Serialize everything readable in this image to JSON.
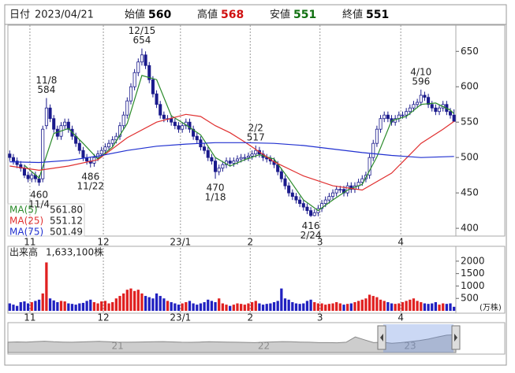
{
  "header": {
    "date_label": "日付",
    "date": "2023/04/21",
    "items": [
      {
        "label": "始値",
        "value": 560,
        "color": "#000000"
      },
      {
        "label": "高値",
        "value": 568,
        "color": "#d01010"
      },
      {
        "label": "安値",
        "value": 551,
        "color": "#107010"
      },
      {
        "label": "終値",
        "value": 551,
        "color": "#000000"
      }
    ]
  },
  "chart_data": [
    {
      "type": "candlestick",
      "categories": [
        null,
        null,
        null,
        null,
        null,
        null,
        "11",
        null,
        null,
        null,
        null,
        null,
        null,
        null,
        null,
        null,
        null,
        null,
        null,
        null,
        null,
        null,
        null,
        null,
        null,
        null,
        "12",
        null,
        null,
        null,
        null,
        null,
        null,
        null,
        null,
        null,
        null,
        null,
        null,
        null,
        null,
        null,
        null,
        null,
        null,
        null,
        null,
        "23/1",
        null,
        null,
        null,
        null,
        null,
        null,
        null,
        null,
        null,
        null,
        null,
        null,
        null,
        null,
        null,
        null,
        null,
        null,
        "2",
        null,
        null,
        null,
        null,
        null,
        null,
        null,
        null,
        null,
        null,
        null,
        null,
        null,
        null,
        null,
        null,
        null,
        null,
        "3",
        null,
        null,
        null,
        null,
        null,
        null,
        null,
        null,
        null,
        null,
        null,
        null,
        null,
        null,
        null,
        null,
        null,
        null,
        null,
        null,
        null,
        "4",
        null,
        null,
        null,
        null,
        null,
        null,
        null,
        null,
        null,
        null,
        null,
        null,
        null,
        null
      ],
      "open": [
        505,
        500,
        495,
        490,
        485,
        475,
        470,
        475,
        470,
        470,
        545,
        570,
        555,
        540,
        530,
        545,
        550,
        540,
        530,
        520,
        510,
        500,
        495,
        492,
        500,
        505,
        510,
        515,
        520,
        525,
        530,
        545,
        560,
        580,
        600,
        620,
        635,
        645,
        630,
        610,
        590,
        575,
        560,
        555,
        555,
        550,
        545,
        540,
        545,
        550,
        540,
        530,
        525,
        515,
        510,
        500,
        495,
        480,
        485,
        490,
        495,
        492,
        495,
        498,
        500,
        500,
        502,
        505,
        510,
        505,
        500,
        498,
        495,
        490,
        480,
        470,
        460,
        450,
        445,
        440,
        435,
        430,
        425,
        418,
        422,
        428,
        435,
        440,
        445,
        450,
        455,
        455,
        450,
        460,
        455,
        460,
        465,
        470,
        475,
        500,
        520,
        540,
        555,
        560,
        555,
        550,
        555,
        560,
        560,
        565,
        570,
        575,
        578,
        588,
        585,
        575,
        570,
        565,
        570,
        575,
        565,
        560
      ],
      "high": [
        510,
        505,
        500,
        495,
        490,
        480,
        480,
        480,
        475,
        545,
        584,
        575,
        560,
        545,
        550,
        555,
        555,
        545,
        535,
        525,
        515,
        505,
        500,
        505,
        510,
        515,
        520,
        525,
        530,
        535,
        550,
        565,
        585,
        605,
        625,
        640,
        654,
        650,
        635,
        615,
        595,
        580,
        565,
        560,
        560,
        555,
        550,
        550,
        555,
        555,
        545,
        535,
        530,
        520,
        515,
        505,
        500,
        490,
        495,
        500,
        500,
        500,
        503,
        505,
        505,
        507,
        510,
        517,
        515,
        510,
        505,
        503,
        500,
        495,
        485,
        475,
        465,
        455,
        450,
        445,
        440,
        435,
        430,
        427,
        433,
        440,
        445,
        450,
        455,
        460,
        460,
        460,
        465,
        465,
        465,
        470,
        475,
        480,
        505,
        525,
        545,
        560,
        565,
        565,
        560,
        560,
        565,
        565,
        570,
        575,
        580,
        583,
        596,
        593,
        590,
        580,
        575,
        575,
        580,
        580,
        570,
        568
      ],
      "low": [
        495,
        490,
        485,
        480,
        471,
        465,
        465,
        465,
        460,
        465,
        540,
        550,
        535,
        525,
        525,
        540,
        535,
        525,
        515,
        505,
        495,
        490,
        486,
        487,
        495,
        500,
        505,
        510,
        515,
        520,
        525,
        540,
        555,
        575,
        595,
        615,
        630,
        625,
        605,
        585,
        570,
        555,
        550,
        550,
        545,
        540,
        535,
        535,
        540,
        535,
        525,
        520,
        510,
        505,
        495,
        490,
        470,
        475,
        480,
        485,
        487,
        487,
        490,
        493,
        495,
        495,
        497,
        500,
        500,
        495,
        493,
        490,
        485,
        475,
        465,
        455,
        445,
        440,
        435,
        430,
        425,
        420,
        416,
        417,
        417,
        423,
        430,
        435,
        440,
        445,
        450,
        445,
        445,
        450,
        450,
        455,
        460,
        465,
        470,
        495,
        515,
        535,
        550,
        550,
        545,
        545,
        550,
        555,
        555,
        560,
        565,
        570,
        573,
        580,
        570,
        565,
        560,
        560,
        565,
        560,
        555,
        551
      ],
      "close": [
        500,
        495,
        490,
        485,
        475,
        470,
        475,
        470,
        465,
        540,
        570,
        555,
        540,
        530,
        545,
        550,
        540,
        530,
        520,
        510,
        500,
        495,
        492,
        500,
        505,
        510,
        515,
        520,
        525,
        530,
        545,
        560,
        580,
        600,
        620,
        635,
        645,
        630,
        610,
        590,
        575,
        560,
        555,
        555,
        550,
        545,
        540,
        545,
        550,
        540,
        530,
        525,
        515,
        510,
        500,
        495,
        480,
        485,
        490,
        495,
        492,
        495,
        498,
        500,
        500,
        502,
        505,
        510,
        505,
        500,
        498,
        495,
        490,
        480,
        470,
        460,
        450,
        445,
        440,
        435,
        430,
        425,
        418,
        422,
        428,
        435,
        440,
        445,
        450,
        455,
        455,
        450,
        460,
        455,
        460,
        465,
        470,
        475,
        500,
        520,
        540,
        555,
        560,
        555,
        550,
        555,
        560,
        560,
        565,
        570,
        575,
        578,
        588,
        585,
        575,
        570,
        565,
        570,
        575,
        565,
        560,
        551
      ],
      "up_color": "#ffffff",
      "down_color": "#1a1a8c",
      "edge_color": "#1a1a8c",
      "ylim": [
        389,
        687
      ],
      "yticks": [
        400,
        450,
        500,
        550,
        600,
        650
      ],
      "series": [
        {
          "name": "MA(5)",
          "color": "#2a8a2a",
          "legend_value": "561.80",
          "x": [
            4,
            8,
            12,
            16,
            20,
            24,
            28,
            32,
            36,
            40,
            44,
            48,
            52,
            56,
            60,
            64,
            68,
            72,
            76,
            80,
            84,
            88,
            92,
            96,
            100,
            104,
            108,
            112,
            116,
            120,
            121
          ],
          "values": [
            489,
            471,
            534,
            541,
            520,
            498,
            515,
            548,
            616,
            610,
            559,
            546,
            532,
            500,
            488,
            497,
            504,
            498,
            470,
            440,
            425,
            440,
            454,
            462,
            501,
            552,
            558,
            575,
            577,
            567,
            561.8
          ]
        },
        {
          "name": "MA(25)",
          "color": "#e03030",
          "legend_value": "551.12",
          "x": [
            0,
            8,
            16,
            24,
            32,
            40,
            48,
            52,
            56,
            60,
            64,
            72,
            80,
            88,
            96,
            104,
            112,
            118,
            121
          ],
          "values": [
            488,
            482,
            488,
            497,
            528,
            550,
            561,
            558,
            545,
            535,
            522,
            494,
            474,
            460,
            454,
            478,
            520,
            540,
            551.12
          ]
        },
        {
          "name": "MA(75)",
          "color": "#2030d0",
          "legend_value": "501.49",
          "x": [
            0,
            8,
            16,
            24,
            32,
            40,
            48,
            56,
            64,
            72,
            80,
            88,
            96,
            104,
            112,
            121
          ],
          "values": [
            494,
            493,
            496,
            502,
            510,
            516,
            519,
            521,
            521,
            520,
            517,
            512,
            507,
            503,
            500,
            501.49
          ]
        }
      ],
      "high_marks": [
        {
          "date": "11/8",
          "value": 584
        },
        {
          "date": "12/15",
          "value": 654
        },
        {
          "date": "2/2",
          "value": 517
        },
        {
          "date": "4/10",
          "value": 596
        }
      ],
      "low_marks": [
        {
          "date": "11/4",
          "value": 460
        },
        {
          "date": "11/22",
          "value": 486
        },
        {
          "date": "1/18",
          "value": 470
        },
        {
          "date": "2/24",
          "value": 416
        }
      ]
    },
    {
      "type": "bar",
      "title": "出来高",
      "total_label": "1,633,100株",
      "unit": "(万株)",
      "categories": [
        null,
        null,
        null,
        null,
        null,
        null,
        "11",
        null,
        null,
        null,
        null,
        null,
        null,
        null,
        null,
        null,
        null,
        null,
        null,
        null,
        null,
        null,
        null,
        null,
        null,
        null,
        "12",
        null,
        null,
        null,
        null,
        null,
        null,
        null,
        null,
        null,
        null,
        null,
        null,
        null,
        null,
        null,
        null,
        null,
        null,
        null,
        null,
        "23/1",
        null,
        null,
        null,
        null,
        null,
        null,
        null,
        null,
        null,
        null,
        null,
        null,
        null,
        null,
        null,
        null,
        null,
        null,
        "2",
        null,
        null,
        null,
        null,
        null,
        null,
        null,
        null,
        null,
        null,
        null,
        null,
        null,
        null,
        null,
        null,
        null,
        null,
        "3",
        null,
        null,
        null,
        null,
        null,
        null,
        null,
        null,
        null,
        null,
        null,
        null,
        null,
        null,
        null,
        null,
        null,
        null,
        null,
        null,
        null,
        "4",
        null,
        null,
        null,
        null,
        null,
        null,
        null,
        null,
        null,
        null,
        null,
        null,
        null,
        null
      ],
      "values": [
        300,
        250,
        200,
        350,
        380,
        300,
        350,
        400,
        450,
        700,
        1950,
        500,
        420,
        350,
        400,
        380,
        300,
        280,
        250,
        300,
        320,
        400,
        450,
        350,
        300,
        380,
        400,
        300,
        350,
        500,
        600,
        700,
        850,
        900,
        800,
        850,
        700,
        600,
        550,
        500,
        700,
        600,
        500,
        400,
        350,
        300,
        250,
        300,
        350,
        400,
        300,
        250,
        300,
        350,
        450,
        400,
        350,
        500,
        300,
        250,
        200,
        250,
        300,
        280,
        250,
        300,
        350,
        400,
        300,
        250,
        280,
        300,
        350,
        400,
        900,
        500,
        450,
        350,
        300,
        280,
        300,
        400,
        450,
        350,
        300,
        300,
        250,
        280,
        300,
        350,
        300,
        250,
        280,
        300,
        350,
        400,
        450,
        500,
        650,
        600,
        550,
        450,
        400,
        350,
        300,
        280,
        300,
        350,
        400,
        450,
        500,
        400,
        350,
        300,
        280,
        300,
        350,
        250,
        300,
        280,
        300,
        163.31
      ],
      "up_color": "#e02020",
      "down_color": "#2020c0",
      "ylim": [
        0,
        2440
      ],
      "yticks": [
        500,
        1000,
        1500,
        2000
      ]
    },
    {
      "type": "area",
      "color": "#b8b8b8",
      "categories": [
        null,
        null,
        null,
        null,
        null,
        null,
        null,
        null,
        null,
        null,
        null,
        null,
        "21",
        null,
        null,
        null,
        null,
        null,
        null,
        null,
        null,
        null,
        null,
        null,
        null,
        null,
        null,
        null,
        "22",
        null,
        null,
        null,
        null,
        null,
        null,
        null,
        null,
        null,
        null,
        null,
        null,
        null,
        null,
        null,
        "23",
        null,
        null,
        null,
        null,
        null
      ],
      "values": [
        445,
        450,
        448,
        455,
        460,
        452,
        448,
        445,
        450,
        455,
        458,
        452,
        447,
        445,
        448,
        450,
        452,
        455,
        450,
        446,
        444,
        448,
        452,
        450,
        447,
        445,
        443,
        440,
        445,
        450,
        455,
        452,
        448,
        445,
        440,
        440,
        438,
        445,
        520,
        480,
        440,
        445,
        430,
        440,
        455,
        470,
        490,
        520,
        545,
        551
      ],
      "ylim": [
        300,
        700
      ]
    }
  ]
}
